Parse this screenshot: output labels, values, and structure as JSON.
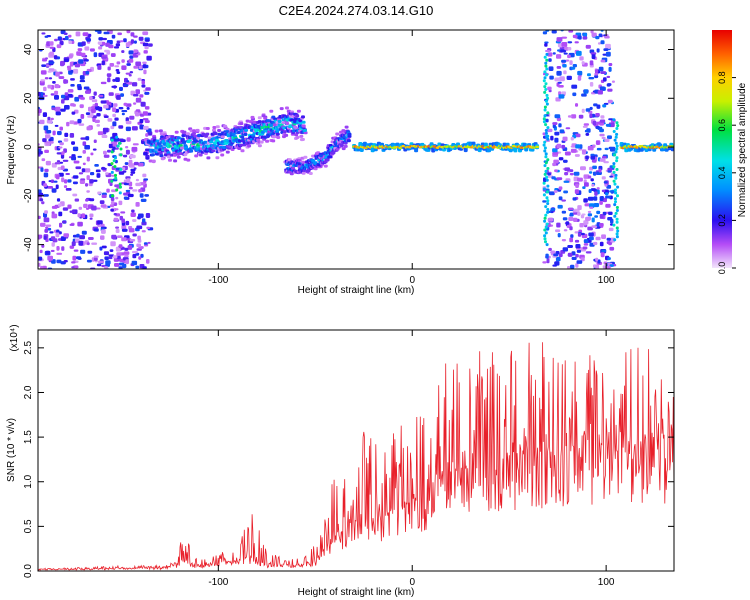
{
  "figure": {
    "title": "C2E4.2024.274.03.14.G10"
  },
  "chart_data": [
    {
      "type": "heatmap",
      "xlabel": "Height of straight line (km)",
      "ylabel": "Frequency (Hz)",
      "xlim": [
        -193,
        135
      ],
      "ylim": [
        -50,
        48
      ],
      "xticks": [
        -100,
        0,
        100
      ],
      "yticks": [
        -40,
        -20,
        0,
        20,
        40
      ],
      "colorbar": {
        "label": "Normalized spectral amplitude",
        "range": [
          0.0,
          1.0
        ],
        "ticks": [
          0.0,
          0.2,
          0.4,
          0.6,
          0.8
        ],
        "colormap": "rainbow-magenta-to-red"
      },
      "regions": [
        {
          "kind": "noise",
          "x": [
            -193,
            -135
          ],
          "f": [
            -50,
            48
          ],
          "level": 0.15
        },
        {
          "kind": "streak",
          "x": [
            -155,
            -150
          ],
          "f": [
            -20,
            5
          ],
          "level": 0.5
        },
        {
          "kind": "band",
          "points": [
            [
              -135,
              0
            ],
            [
              -115,
              1
            ],
            [
              -100,
              2
            ],
            [
              -85,
              5
            ],
            [
              -75,
              8
            ],
            [
              -65,
              10
            ],
            [
              -55,
              9
            ]
          ],
          "halfwidth": 4,
          "level": 0.5
        },
        {
          "kind": "branch",
          "points": [
            [
              -65,
              -8
            ],
            [
              -55,
              -8
            ],
            [
              -45,
              -4
            ],
            [
              -38,
              2
            ],
            [
              -32,
              5
            ]
          ],
          "halfwidth": 2.5,
          "level": 0.4
        },
        {
          "kind": "line",
          "x": [
            -30,
            65
          ],
          "f": 0,
          "level": 0.85
        },
        {
          "kind": "noise",
          "x": [
            68,
            104
          ],
          "f": [
            -50,
            48
          ],
          "level": 0.2
        },
        {
          "kind": "streak",
          "x": [
            68,
            70
          ],
          "f": [
            -40,
            38
          ],
          "level": 0.45
        },
        {
          "kind": "streak",
          "x": [
            104,
            106
          ],
          "f": [
            -38,
            12
          ],
          "level": 0.45
        },
        {
          "kind": "line",
          "x": [
            108,
            135
          ],
          "f": 0,
          "level": 0.85
        }
      ]
    },
    {
      "type": "line",
      "xlabel": "Height of straight line (km)",
      "ylabel": "SNR (10 * v/v)",
      "yscale_label": "(x10⁴)",
      "xlim": [
        -193,
        135
      ],
      "ylim": [
        0,
        2.7
      ],
      "xticks": [
        -100,
        0,
        100
      ],
      "yticks": [
        0.0,
        0.5,
        1.0,
        1.5,
        2.0,
        2.5
      ],
      "ytick_labels": [
        "0.0",
        "0.5",
        "1.0",
        "1.5",
        "2.0",
        "2.5"
      ],
      "color": "#e8202a",
      "envelope": {
        "x": [
          -193,
          -170,
          -150,
          -130,
          -122,
          -118,
          -112,
          -100,
          -90,
          -82,
          -75,
          -60,
          -50,
          -45,
          -38,
          -30,
          -25,
          -15,
          -5,
          0,
          5,
          10,
          20,
          30,
          45,
          60,
          80,
          100,
          120,
          135
        ],
        "base": [
          0.02,
          0.02,
          0.03,
          0.03,
          0.06,
          0.12,
          0.06,
          0.08,
          0.12,
          0.15,
          0.06,
          0.06,
          0.1,
          0.25,
          0.4,
          0.55,
          0.6,
          0.6,
          0.7,
          0.75,
          0.75,
          0.95,
          1.1,
          1.15,
          1.2,
          1.25,
          1.3,
          1.35,
          1.35,
          1.35
        ],
        "peak": [
          0.03,
          0.04,
          0.06,
          0.06,
          0.1,
          0.45,
          0.15,
          0.2,
          0.35,
          0.75,
          0.2,
          0.15,
          0.3,
          0.8,
          1.2,
          1.45,
          1.6,
          1.55,
          1.8,
          1.6,
          1.9,
          2.3,
          2.4,
          2.5,
          2.5,
          2.6,
          2.5,
          2.5,
          2.55,
          2.15
        ]
      },
      "n_samples": 900
    }
  ]
}
